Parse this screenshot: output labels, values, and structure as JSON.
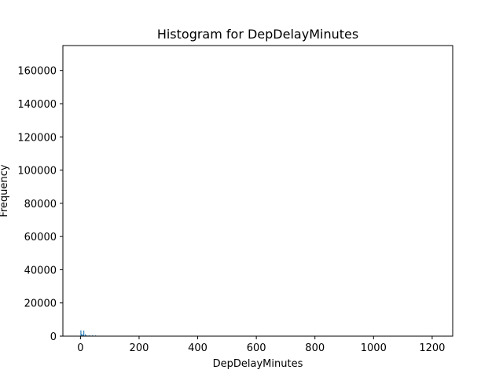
{
  "chart_data": {
    "type": "histogram",
    "title": "Histogram for DepDelayMinutes",
    "xlabel": "DepDelayMinutes",
    "ylabel": "Frequency",
    "xlim": [
      -60,
      1270
    ],
    "ylim": [
      0,
      175000
    ],
    "xticks": [
      0,
      200,
      400,
      600,
      800,
      1000,
      1200
    ],
    "yticks": [
      0,
      20000,
      40000,
      60000,
      80000,
      100000,
      120000,
      140000,
      160000
    ],
    "bins": [
      {
        "x": 0,
        "value": 3500
      },
      {
        "x": 3,
        "value": 1200
      },
      {
        "x": 7,
        "value": 900
      },
      {
        "x": 10,
        "value": 3400
      },
      {
        "x": 15,
        "value": 1100
      },
      {
        "x": 20,
        "value": 600
      },
      {
        "x": 25,
        "value": 350
      },
      {
        "x": 30,
        "value": 600
      },
      {
        "x": 35,
        "value": 250
      },
      {
        "x": 40,
        "value": 600
      },
      {
        "x": 45,
        "value": 200
      },
      {
        "x": 50,
        "value": 450
      },
      {
        "x": 55,
        "value": 150
      },
      {
        "x": 60,
        "value": 250
      }
    ],
    "bar_color": "#1f77b4",
    "grid": false
  }
}
